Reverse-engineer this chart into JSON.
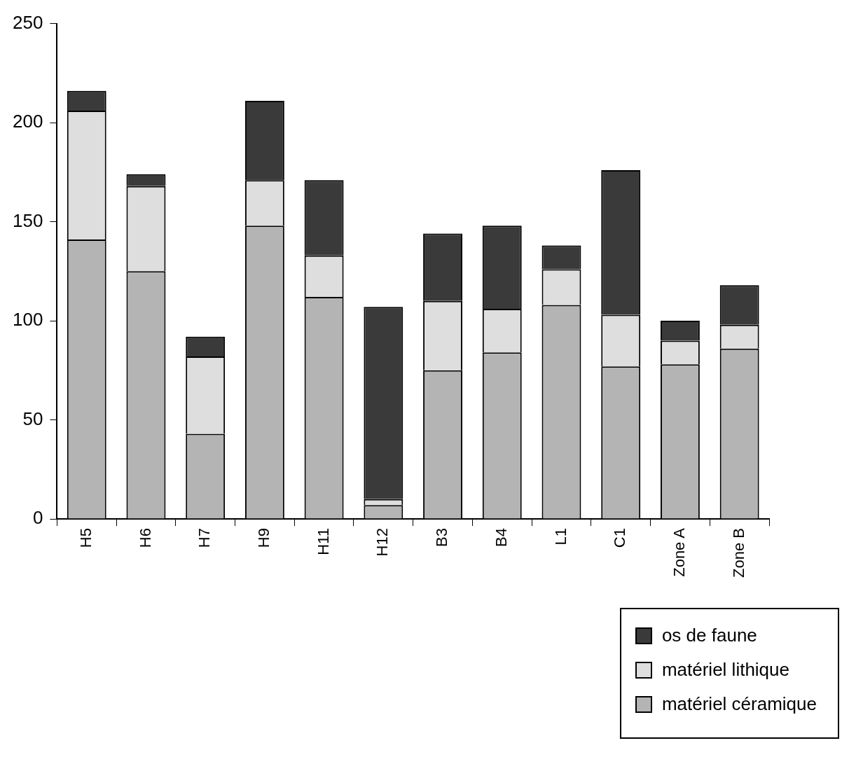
{
  "chart_data": {
    "type": "bar",
    "stacked": true,
    "categories": [
      "H5",
      "H6",
      "H7",
      "H9",
      "H11",
      "H12",
      "B3",
      "B4",
      "L1",
      "C1",
      "Zone A",
      "Zone B"
    ],
    "series": [
      {
        "name": "matériel céramique",
        "color": "#b4b4b4",
        "values": [
          141,
          125,
          43,
          148,
          112,
          7,
          75,
          84,
          108,
          77,
          78,
          86
        ]
      },
      {
        "name": "matériel lithique",
        "color": "#dedede",
        "values": [
          65,
          43,
          39,
          23,
          21,
          3,
          35,
          22,
          18,
          26,
          12,
          12
        ]
      },
      {
        "name": "os de faune",
        "color": "#3a3a3a",
        "values": [
          10,
          6,
          10,
          40,
          38,
          97,
          34,
          42,
          12,
          73,
          10,
          20
        ]
      }
    ],
    "ylim": [
      0,
      250
    ],
    "yticks": [
      0,
      50,
      100,
      150,
      200,
      250
    ],
    "grid": false,
    "legend": "bottom right"
  }
}
